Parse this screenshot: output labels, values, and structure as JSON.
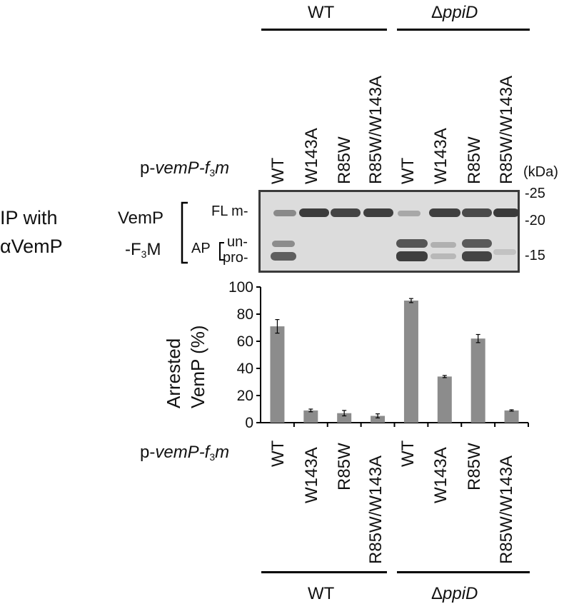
{
  "strain_groups": [
    "WT",
    "ΔppiD"
  ],
  "plasmid_label_prefix": "p-",
  "plasmid_label_italic": "vemP-f",
  "plasmid_sub": "3",
  "plasmid_label_tail": "m",
  "constructs": [
    "WT",
    "W143A",
    "R85W",
    "R85W/W143A",
    "WT",
    "W143A",
    "R85W",
    "R85W/W143A"
  ],
  "kda_label": "(kDa)",
  "markers": [
    "-25",
    "-20",
    "-15"
  ],
  "ip_label": [
    "IP with",
    "αVemP"
  ],
  "protein_label": [
    "VemP",
    "-F",
    "3",
    "M"
  ],
  "band_labels": {
    "fl": "FL m-",
    "ap": "AP",
    "un": "un-",
    "pro": "pro-"
  },
  "chart_data": {
    "type": "bar",
    "categories": [
      "WT",
      "W143A",
      "R85W",
      "R85W/W143A",
      "WT",
      "W143A",
      "R85W",
      "R85W/W143A"
    ],
    "series": [
      {
        "values": [
          71,
          9,
          7,
          5,
          90,
          34,
          62,
          9
        ],
        "errors": [
          5,
          1,
          2,
          1.5,
          1.5,
          0.8,
          3,
          0.5
        ]
      }
    ],
    "ylabel": [
      "Arrested",
      "VemP (%)"
    ],
    "ylim": [
      0,
      100
    ],
    "yticks": [
      0,
      20,
      40,
      60,
      80,
      100
    ],
    "bar_color": "#8c8c8c",
    "grid": false
  },
  "colors": {
    "blot_bg": "#dcdcdc",
    "band_dark": "#3c3c3c"
  }
}
